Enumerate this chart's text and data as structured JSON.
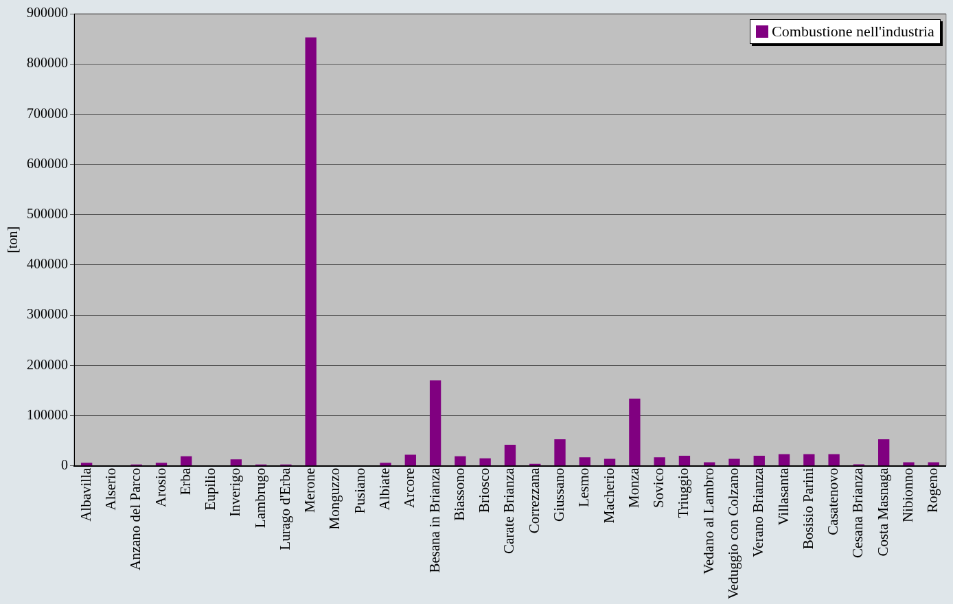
{
  "chart_data": {
    "type": "bar",
    "ylabel": "[ton]",
    "categories": [
      "Albavilla",
      "Alserio",
      "Anzano del Parco",
      "Arosio",
      "Erba",
      "Eupilio",
      "Inverigo",
      "Lambrugo",
      "Lurago d'Erba",
      "Merone",
      "Monguzzo",
      "Pusiano",
      "Albiate",
      "Arcore",
      "Besana in Brianza",
      "Biassono",
      "Briosco",
      "Carate Brianza",
      "Correzzana",
      "Giussano",
      "Lesmo",
      "Macherio",
      "Monza",
      "Sovico",
      "Triuggio",
      "Vedano al Lambro",
      "Veduggio con Colzano",
      "Verano Brianza",
      "Villasanta",
      "Bosisio Parini",
      "Casatenovo",
      "Cesana Brianza",
      "Costa Masnaga",
      "Nibionno",
      "Rogeno"
    ],
    "series": [
      {
        "name": "Combustione nell'industria",
        "color": "#800080",
        "values": [
          6000,
          0,
          2500,
          6000,
          19000,
          0,
          13000,
          2500,
          2500,
          853000,
          0,
          0,
          6000,
          22000,
          170000,
          19000,
          15000,
          42000,
          4000,
          53000,
          17000,
          14000,
          134000,
          17000,
          20000,
          7000,
          14000,
          20000,
          23000,
          23000,
          23000,
          3000,
          53000,
          7000,
          7000
        ]
      }
    ],
    "ylim": [
      0,
      900000
    ],
    "yticks": [
      0,
      100000,
      200000,
      300000,
      400000,
      500000,
      600000,
      700000,
      800000,
      900000
    ],
    "grid": "y",
    "legend": "top right"
  }
}
